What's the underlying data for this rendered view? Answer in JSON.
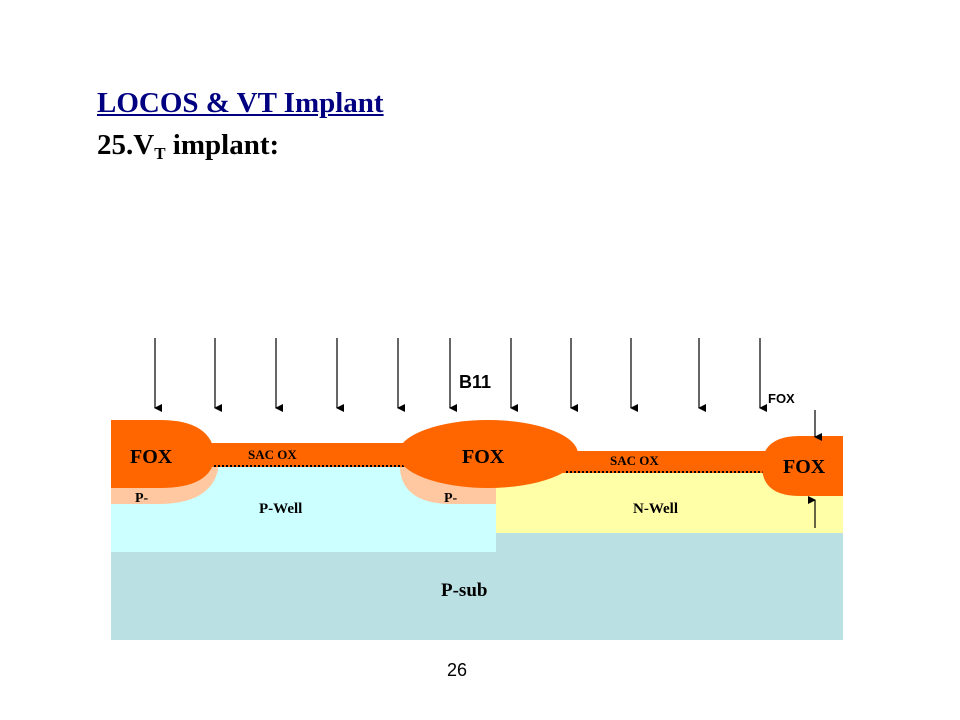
{
  "slide": {
    "title": "LOCOS & VT Implant",
    "subtitle_prefix": "25.V",
    "subtitle_subscript": "T",
    "subtitle_suffix": " implant:",
    "page_number": "26"
  },
  "diagram": {
    "implant_species": "B11",
    "fox_callout": "FOX",
    "regions": {
      "fox_left": "FOX",
      "fox_middle": "FOX",
      "fox_right": "FOX",
      "sac_ox_left": "SAC OX",
      "sac_ox_right": "SAC OX",
      "p_minus_left": "P-",
      "p_minus_middle": "P-",
      "p_well": "P-Well",
      "n_well": "N-Well",
      "p_sub": "P-sub"
    },
    "colors": {
      "fox": "#FF6600",
      "p_minus": "#FFC8A0",
      "p_well": "#CCFFFF",
      "n_well": "#FFFFA8",
      "p_sub": "#BBE0E3",
      "title": "#000080"
    }
  }
}
